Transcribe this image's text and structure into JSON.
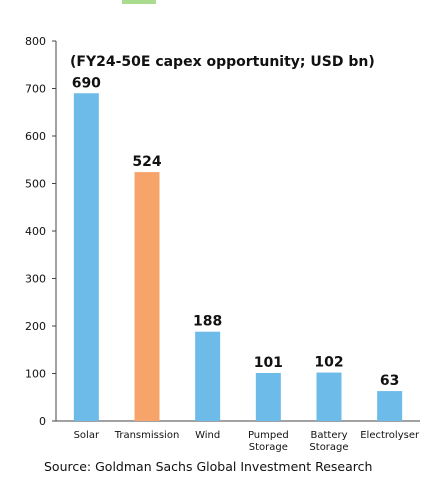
{
  "chart_data": {
    "type": "bar",
    "title": "(FY24-50E capex opportunity; USD bn)",
    "categories": [
      "Solar",
      "Transmission",
      "Wind",
      "Pumped\nStorage",
      "Battery\nStorage",
      "Electrolyser"
    ],
    "values": [
      690,
      524,
      188,
      101,
      102,
      63
    ],
    "data_labels": [
      "690",
      "524",
      "188",
      "101",
      "102",
      "63"
    ],
    "bar_colors": [
      "#6cbbe8",
      "#f7a46b",
      "#6cbbe8",
      "#6cbbe8",
      "#6cbbe8",
      "#6cbbe8"
    ],
    "ylim": [
      0,
      800
    ],
    "yticks": [
      0,
      100,
      200,
      300,
      400,
      500,
      600,
      700,
      800
    ],
    "grid": false,
    "xlabel": "",
    "ylabel": ""
  },
  "source": "Source: Goldman Sachs Global Investment Research"
}
